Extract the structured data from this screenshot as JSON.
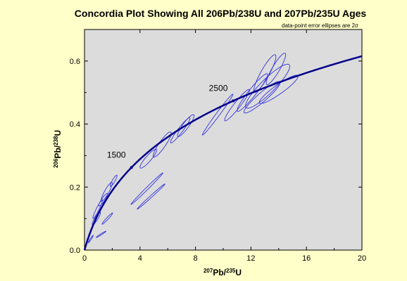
{
  "chart_data": {
    "type": "scatter",
    "title": "Concordia Plot Showing All 206Pb/238U  and 207Pb/235U  Ages",
    "subtitle": "data-point error ellipses are 2σ",
    "xlabel": {
      "sup": "207",
      "base": "Pb/",
      "sup2": "235",
      "end": "U"
    },
    "ylabel": {
      "sup": "206",
      "base": "Pb/",
      "sup2": "238",
      "end": "U"
    },
    "xlim": [
      0,
      20
    ],
    "ylim": [
      0,
      0.7
    ],
    "x_ticks": [
      0,
      4,
      8,
      12,
      16,
      20
    ],
    "x_tick_labels": [
      "0",
      "4",
      "8",
      "12",
      "16",
      "20"
    ],
    "y_ticks": [
      0,
      0.2,
      0.4,
      0.6
    ],
    "y_tick_labels": [
      "0.0",
      "0.2",
      "0.4",
      "0.6"
    ],
    "plot_background": "#dcdcdc",
    "concordia_color": "#00008b",
    "ellipse_color": "#3333dd",
    "concordia_age_labels": [
      {
        "age_ma": 1500,
        "label": "1500"
      },
      {
        "age_ma": 2500,
        "label": "2500"
      }
    ],
    "ellipses": [
      {
        "x": 0.45,
        "y": 0.035,
        "sx": 0.18,
        "sy": 0.012,
        "rho": 0.97
      },
      {
        "x": 1.2,
        "y": 0.05,
        "sx": 0.35,
        "sy": 0.01,
        "rho": 0.98
      },
      {
        "x": 1.65,
        "y": 0.1,
        "sx": 0.38,
        "sy": 0.018,
        "rho": 0.97
      },
      {
        "x": 0.85,
        "y": 0.1,
        "sx": 0.3,
        "sy": 0.02,
        "rho": 0.9
      },
      {
        "x": 0.95,
        "y": 0.13,
        "sx": 0.35,
        "sy": 0.03,
        "rho": 0.95
      },
      {
        "x": 1.35,
        "y": 0.16,
        "sx": 0.32,
        "sy": 0.02,
        "rho": 0.9
      },
      {
        "x": 1.6,
        "y": 0.185,
        "sx": 0.4,
        "sy": 0.03,
        "rho": 0.9
      },
      {
        "x": 2.1,
        "y": 0.22,
        "sx": 0.25,
        "sy": 0.018,
        "rho": 0.9
      },
      {
        "x": 4.5,
        "y": 0.195,
        "sx": 1.15,
        "sy": 0.05,
        "rho": 0.995
      },
      {
        "x": 4.8,
        "y": 0.17,
        "sx": 1.0,
        "sy": 0.04,
        "rho": 0.995
      },
      {
        "x": 4.6,
        "y": 0.29,
        "sx": 0.6,
        "sy": 0.03,
        "rho": 0.9
      },
      {
        "x": 5.6,
        "y": 0.335,
        "sx": 0.65,
        "sy": 0.04,
        "rho": 0.9
      },
      {
        "x": 6.9,
        "y": 0.38,
        "sx": 0.7,
        "sy": 0.04,
        "rho": 0.95
      },
      {
        "x": 7.3,
        "y": 0.395,
        "sx": 0.6,
        "sy": 0.035,
        "rho": 0.9
      },
      {
        "x": 9.6,
        "y": 0.43,
        "sx": 1.1,
        "sy": 0.065,
        "rho": 0.99
      },
      {
        "x": 11.0,
        "y": 0.46,
        "sx": 0.9,
        "sy": 0.05,
        "rho": 0.95
      },
      {
        "x": 12.1,
        "y": 0.5,
        "sx": 1.1,
        "sy": 0.06,
        "rho": 0.95
      },
      {
        "x": 13.2,
        "y": 0.52,
        "sx": 1.6,
        "sy": 0.07,
        "rho": 0.9
      },
      {
        "x": 13.0,
        "y": 0.56,
        "sx": 0.8,
        "sy": 0.06,
        "rho": 0.9
      },
      {
        "x": 13.8,
        "y": 0.575,
        "sx": 0.7,
        "sy": 0.05,
        "rho": 0.9
      },
      {
        "x": 14.0,
        "y": 0.51,
        "sx": 1.4,
        "sy": 0.045,
        "rho": 0.92
      },
      {
        "x": 12.8,
        "y": 0.485,
        "sx": 1.3,
        "sy": 0.05,
        "rho": 0.93
      }
    ]
  }
}
